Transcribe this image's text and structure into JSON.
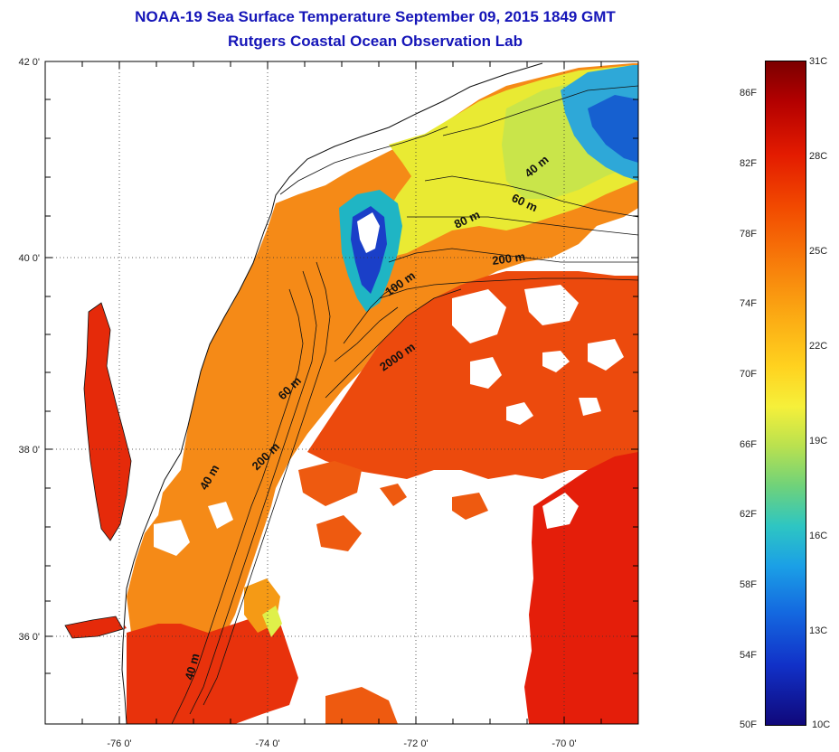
{
  "title": {
    "line1": "NOAA-19 Sea Surface Temperature September 09, 2015 1849 GMT",
    "line2": "Rutgers Coastal Ocean Observation Lab"
  },
  "map": {
    "lat_ticks": [
      "42 0'",
      "40 0'",
      "38 0'",
      "36 0'"
    ],
    "lon_ticks": [
      "-76 0'",
      "-74 0'",
      "-72 0'",
      "-70 0'"
    ],
    "isobath_labels": [
      "40 m",
      "60 m",
      "80 m",
      "200 m",
      "100 m",
      "2000 m",
      "60 m",
      "200 m",
      "40 m",
      "40 m"
    ]
  },
  "colorbar": {
    "celsius": [
      "31C",
      "28C",
      "25C",
      "22C",
      "19C",
      "16C",
      "13C",
      "10C"
    ],
    "fahrenheit": [
      "86F",
      "82F",
      "78F",
      "74F",
      "70F",
      "66F",
      "62F",
      "58F",
      "54F",
      "50F"
    ],
    "colors": [
      "#7b0000",
      "#e31b00",
      "#f77a0a",
      "#ffd21f",
      "#6fd27a",
      "#1ba0e6",
      "#1131c8",
      "#10087a"
    ]
  }
}
